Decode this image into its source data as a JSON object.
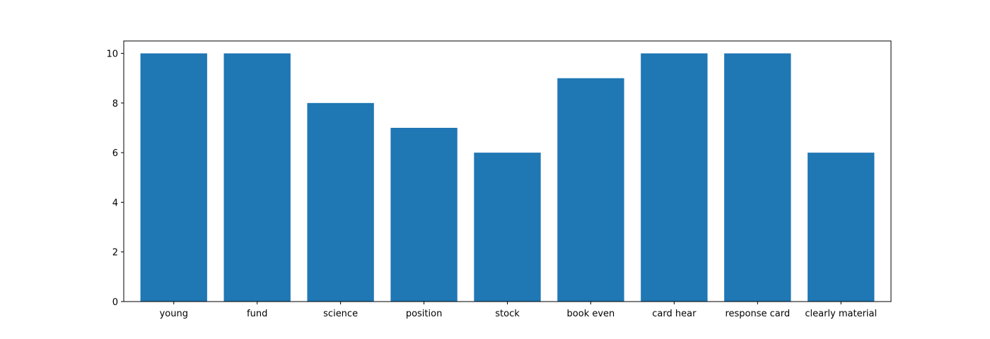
{
  "chart_data": {
    "type": "bar",
    "title": "",
    "xlabel": "",
    "ylabel": "",
    "categories": [
      "young",
      "fund",
      "science",
      "position",
      "stock",
      "book even",
      "card hear",
      "response card",
      "clearly material"
    ],
    "values": [
      10,
      10,
      8,
      7,
      6,
      9,
      10,
      10,
      6
    ],
    "ylim": [
      0,
      10.5
    ],
    "yticks": [
      0,
      2,
      4,
      6,
      8,
      10
    ],
    "bar_color": "#1f77b4",
    "grid": false,
    "legend": "none"
  }
}
